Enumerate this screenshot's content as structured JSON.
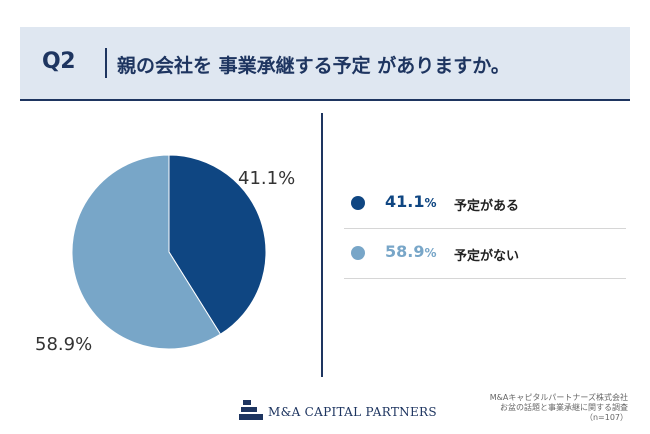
{
  "header": {
    "question_no": "Q2",
    "question": "親の会社を 事業承継する予定 がありますか。"
  },
  "colors": {
    "primary": "#0f4682",
    "secondary": "#78a6c8",
    "header_bg": "#dfe7f1",
    "accent": "#1e3560"
  },
  "chart_data": {
    "type": "pie",
    "categories": [
      "予定がある",
      "予定がない"
    ],
    "values": [
      41.1,
      58.9
    ],
    "data_labels": [
      "41.1%",
      "58.9%"
    ],
    "colors": [
      "#0f4682",
      "#78a6c8"
    ],
    "legend_position": "right"
  },
  "legend": [
    {
      "pct": "41.1",
      "unit": "%",
      "label": "予定がある",
      "color": "#0f4682"
    },
    {
      "pct": "58.9",
      "unit": "%",
      "label": "予定がない",
      "color": "#78a6c8"
    }
  ],
  "footer": {
    "logo_text": "M&A CAPITAL PARTNERS",
    "source_line1": "M&Aキャピタルパートナーズ株式会社",
    "source_line2": "お盆の話題と事業承継に関する調査",
    "source_line3": "（n=107）"
  }
}
